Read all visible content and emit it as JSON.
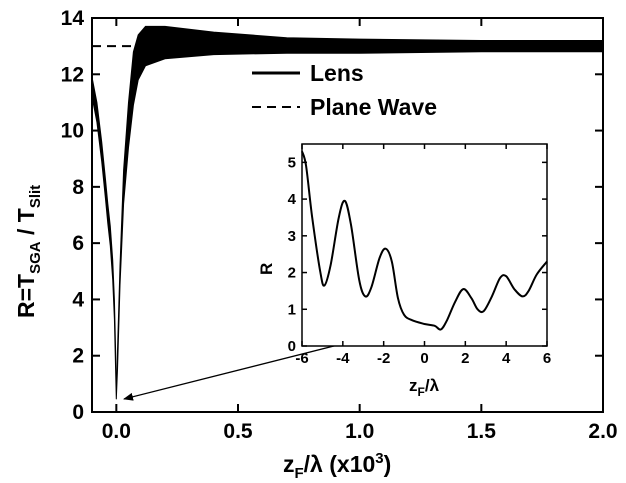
{
  "chart_data": [
    {
      "type": "line",
      "xlabel_main": "z",
      "xlabel_sub": "F",
      "xlabel_rest": "/λ (x10",
      "xlabel_sup": "3",
      "xlabel_close": ")",
      "ylabel_main": "R=T",
      "ylabel_sub1": "SGA",
      "ylabel_mid": " / T",
      "ylabel_sub2": "Slit",
      "xlim": [
        -0.1,
        2.0
      ],
      "ylim": [
        0,
        14
      ],
      "xticks": [
        0.0,
        0.5,
        1.0,
        1.5,
        2.0
      ],
      "xtick_labels": [
        "0.0",
        "0.5",
        "1.0",
        "1.5",
        "2.0"
      ],
      "yticks": [
        0,
        2,
        4,
        6,
        8,
        10,
        12,
        14
      ],
      "ytick_labels": [
        "0",
        "2",
        "4",
        "6",
        "8",
        "10",
        "12",
        "14"
      ],
      "legend_position": "top-right",
      "series": [
        {
          "name": "Lens",
          "style": "solid",
          "upper": [
            [
              -0.1,
              11.9
            ],
            [
              -0.08,
              11.0
            ],
            [
              -0.06,
              9.6
            ],
            [
              -0.045,
              8.3
            ],
            [
              -0.035,
              7.4
            ],
            [
              -0.025,
              6.6
            ],
            [
              -0.015,
              5.4
            ],
            [
              -0.008,
              4.0
            ],
            [
              -0.003,
              2.2
            ],
            [
              0.0,
              0.5
            ],
            [
              0.005,
              2.2
            ],
            [
              0.015,
              5.2
            ],
            [
              0.03,
              8.6
            ],
            [
              0.05,
              11.0
            ],
            [
              0.07,
              12.8
            ],
            [
              0.09,
              13.4
            ],
            [
              0.12,
              13.7
            ],
            [
              0.2,
              13.7
            ],
            [
              0.4,
              13.5
            ],
            [
              0.7,
              13.3
            ],
            [
              1.0,
              13.25
            ],
            [
              1.5,
              13.2
            ],
            [
              2.0,
              13.2
            ]
          ],
          "lower": [
            [
              -0.1,
              11.2
            ],
            [
              -0.08,
              10.3
            ],
            [
              -0.06,
              8.9
            ],
            [
              -0.045,
              7.6
            ],
            [
              -0.035,
              6.7
            ],
            [
              -0.025,
              5.9
            ],
            [
              -0.015,
              4.7
            ],
            [
              -0.008,
              3.3
            ],
            [
              -0.003,
              1.5
            ],
            [
              0.0,
              0.45
            ],
            [
              0.005,
              1.5
            ],
            [
              0.015,
              4.5
            ],
            [
              0.03,
              7.4
            ],
            [
              0.05,
              9.4
            ],
            [
              0.07,
              10.9
            ],
            [
              0.09,
              11.8
            ],
            [
              0.12,
              12.3
            ],
            [
              0.2,
              12.55
            ],
            [
              0.4,
              12.7
            ],
            [
              0.7,
              12.75
            ],
            [
              1.0,
              12.75
            ],
            [
              1.5,
              12.8
            ],
            [
              2.0,
              12.8
            ]
          ]
        },
        {
          "name": "Plane Wave",
          "style": "dashed",
          "points": [
            [
              -0.1,
              13.0
            ],
            [
              2.0,
              13.0
            ]
          ]
        }
      ]
    },
    {
      "type": "line",
      "inset": true,
      "xlabel_main": "z",
      "xlabel_sub": "F",
      "xlabel_rest": "/λ",
      "ylabel": "R",
      "xlim": [
        -6,
        6
      ],
      "ylim": [
        0,
        5.5
      ],
      "xticks": [
        -6,
        -4,
        -2,
        0,
        2,
        4,
        6
      ],
      "xtick_labels": [
        "-6",
        "-4",
        "-2",
        "0",
        "2",
        "4",
        "6"
      ],
      "yticks": [
        0,
        1,
        2,
        3,
        4,
        5
      ],
      "ytick_labels": [
        "0",
        "1",
        "2",
        "3",
        "4",
        "5"
      ],
      "series": [
        {
          "name": "",
          "points": [
            [
              -6.0,
              5.3
            ],
            [
              -5.8,
              4.9
            ],
            [
              -5.5,
              3.5
            ],
            [
              -5.1,
              2.0
            ],
            [
              -4.9,
              1.65
            ],
            [
              -4.6,
              2.2
            ],
            [
              -4.2,
              3.5
            ],
            [
              -3.9,
              3.95
            ],
            [
              -3.6,
              3.3
            ],
            [
              -3.2,
              1.8
            ],
            [
              -2.9,
              1.35
            ],
            [
              -2.6,
              1.6
            ],
            [
              -2.2,
              2.4
            ],
            [
              -1.9,
              2.65
            ],
            [
              -1.6,
              2.3
            ],
            [
              -1.3,
              1.3
            ],
            [
              -1.0,
              0.85
            ],
            [
              -0.6,
              0.7
            ],
            [
              0.0,
              0.6
            ],
            [
              0.5,
              0.55
            ],
            [
              0.8,
              0.45
            ],
            [
              1.1,
              0.7
            ],
            [
              1.5,
              1.2
            ],
            [
              1.9,
              1.55
            ],
            [
              2.3,
              1.3
            ],
            [
              2.6,
              1.0
            ],
            [
              2.9,
              0.95
            ],
            [
              3.3,
              1.35
            ],
            [
              3.7,
              1.85
            ],
            [
              4.0,
              1.9
            ],
            [
              4.4,
              1.55
            ],
            [
              4.8,
              1.35
            ],
            [
              5.1,
              1.5
            ],
            [
              5.5,
              1.95
            ],
            [
              6.0,
              2.3
            ]
          ]
        }
      ]
    }
  ]
}
